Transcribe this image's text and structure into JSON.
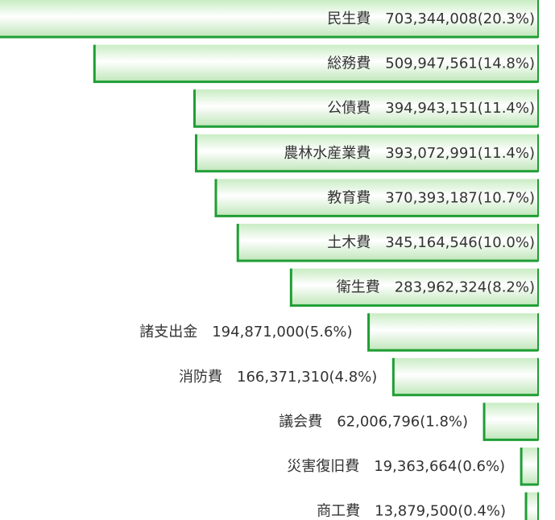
{
  "chart_data": {
    "type": "bar",
    "categories": [
      "民生費",
      "総務費",
      "公債費",
      "農林水産業費",
      "教育費",
      "土木費",
      "衛生費",
      "諸支出金",
      "消防費",
      "議会費",
      "災害復旧費",
      "商工費"
    ],
    "values": [
      703344008,
      509947561,
      394943151,
      393072991,
      370393187,
      345164546,
      283962324,
      194871000,
      166371310,
      62006796,
      19363664,
      13879500
    ],
    "value_labels": [
      "703,344,008",
      "509,947,561",
      "394,943,151",
      "393,072,991",
      "370,393,187",
      "345,164,546",
      "283,962,324",
      "194,871,000",
      "166,371,310",
      "62,006,796",
      "19,363,664",
      "13,879,500"
    ],
    "shares": [
      "(20.3%)",
      "(14.8%)",
      "(11.4%)",
      "(11.4%)",
      "(10.7%)",
      "(10.0%)",
      "(8.2%)",
      "(5.6%)",
      "(4.8%)",
      "(1.8%)",
      "(0.6%)",
      "(0.4%)"
    ],
    "color": "#1f9e35"
  }
}
